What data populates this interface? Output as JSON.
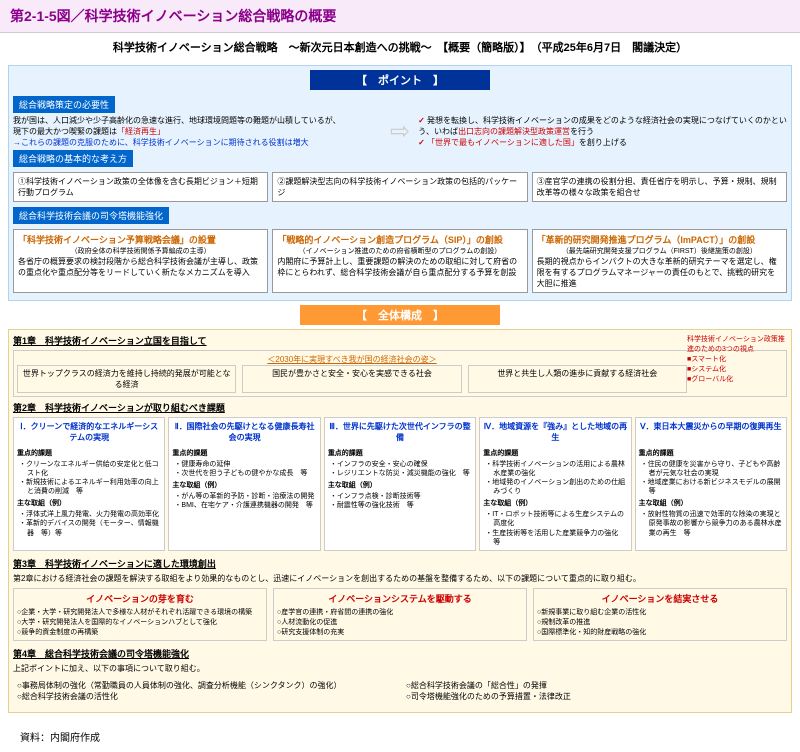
{
  "figureTitle": "第2-1-5図／科学技術イノベーション総合戦略の概要",
  "mainTitle": "科学技術イノベーション総合戦略　～新次元日本創造への挑戦～　【概要（簡略版）】　（平成25年6月7日　閣議決定）",
  "pointHeader": "【　ポイント　】",
  "banner1": "総合戦略策定の必要性",
  "leftText1": "我が国は、人口減少や少子高齢化の急速な進行、地球環境問題等の難題が山積しているが、",
  "leftText2": "現下の最大かつ喫緊の課題は",
  "leftHighlight": "「経済再生」",
  "leftText3": "→これらの課題の克服のために、科学技術イノベーションに期待される役割は増大",
  "rightText1": "発想を転換し、科学技術イノベーションの成果をどのような経済社会の実現につなげていくのかという、いわば",
  "rightHighlight1": "出口志向の課題解決型政策運営",
  "rightText2": "を行う",
  "rightText3": "「世界で最もイノベーションに適した国」",
  "rightText4": "を創り上げる",
  "banner2": "総合戦略の基本的な考え方",
  "box1": "①科学技術イノベーション政策の全体像を含む長期ビジョン＋短期行動プログラム",
  "box2": "②課題解決型志向の科学技術イノベーション政策の包括的パッケージ",
  "box3": "③産官学の連携の役割分担、責任省庁を明示し、予算・規制、規制改革等の様々な政策を組合せ",
  "banner3": "総合科学技術会議の司令塔機能強化",
  "prog1Title": "「科学技術イノベーション予算戦略会議」の設置",
  "prog1Sub": "（政府全体の科学技術関係予算編成の主導）",
  "prog1Text": "各省庁の概算要求の検討段階から総合科学技術会議が主導し、政策の重点化や重点配分等をリードしていく新たなメカニズムを導入",
  "prog2Title": "「戦略的イノベーション創造プログラム（SIP）」の創設",
  "prog2Sub": "（イノベーション推進のための府省横断型のプログラムの創設）",
  "prog2Text": "内閣府に予算計上し、重要課題の解決のための取組に対して府省の枠にとらわれず、総合科学技術会議が自ら重点配分する予算を創設",
  "prog3Title": "「革新的研究開発推進プログラム（ImPACT）」の創設",
  "prog3Sub": "（最先端研究開発支援プログラム（FIRST）後継施策の創設）",
  "prog3Text": "長期的視点からインパクトの大きな革新的研究テーマを選定し、権限を有するプログラムマネージャーの責任のもとで、挑戦的研究を大胆に推進",
  "overallHeader": "【　全体構成　】",
  "ch1": "第1章　科学技術イノベーション立国を目指して",
  "vision2030": "＜2030年に実現すべき我が国の経済社会の姿＞",
  "v1": "世界トップクラスの経済力を維持し持続的発展が可能となる経済",
  "v2": "国民が豊かさと安全・安心を実感できる社会",
  "v3": "世界と共生し人類の進歩に貢献する経済社会",
  "sideNote": "科学技術イノベーション政策推進のための3つの視点",
  "s1": "■スマート化",
  "s2": "■システム化",
  "s3": "■グローバル化",
  "ch2": "第2章　科学技術イノベーションが取り組むべき課題",
  "p1t": "Ⅰ．クリーンで経済的なエネルギーシステムの実現",
  "p2t": "Ⅱ．国際社会の先駆けとなる健康長寿社会の実現",
  "p3t": "Ⅲ．世界に先駆けた次世代インフラの整備",
  "p4t": "Ⅳ．地域資源を『強み』とした地域の再生",
  "p5t": "Ⅴ．東日本大震災からの早期の復興再生",
  "sub1": "重点的課題",
  "sub2": "主な取組（例）",
  "p1a": [
    "クリーンなエネルギー供給の安定化と低コスト化",
    "新規技術によるエネルギー利用効率の向上と消費の削減　等"
  ],
  "p1b": [
    "浮体式洋上風力発電、火力発電の高効率化",
    "革新的デバイスの開発（モーター、情報機器　等）等"
  ],
  "p2a": [
    "健康寿命の延伸",
    "次世代を担う子どもの健やかな成長　等"
  ],
  "p2b": [
    "がん等の革新的予防・診断・治療法の開発",
    "BMI、在宅ケア・介護連携機器の開発　等"
  ],
  "p3a": [
    "インフラの安全・安心の確保",
    "レジリエントな防災・減災機能の強化　等"
  ],
  "p3b": [
    "インフラ点検・診断技術等",
    "耐震性等の強化技術　等"
  ],
  "p4a": [
    "科学技術イノベーションの活用による農林水産業の強化",
    "地域発のイノベーション創出のための仕組みづくり"
  ],
  "p4b": [
    "IT・ロボット技術等による生産システムの高度化",
    "生産技術等を活用した産業競争力の強化　等"
  ],
  "p5a": [
    "住民の健康を災害から守り、子どもや高齢者が元気な社会の実現",
    "地域産業における新ビジネスモデルの展開　等"
  ],
  "p5b": [
    "放射性物質の迅速で効率的な除染の実現と原発事故の影響から競争力のある農林水産業の再生　等"
  ],
  "ch3": "第3章　科学技術イノベーションに適した環境創出",
  "ch3text": "第2章における経済社会の課題を解決する取組をより効果的なものとし、迅速にイノベーションを創出するための基盤を整備するため、以下の課題について重点的に取り組む。",
  "i1t": "イノベーションの芽を育む",
  "i1": [
    "○企業・大学・研究開発法人で多様な人材がそれぞれ活躍できる環境の構築",
    "○大学・研究開発法人を国際的なイノベーションハブとして強化",
    "○競争的資金制度の再構築"
  ],
  "i2t": "イノベーションシステムを駆動する",
  "i2": [
    "○産学官の連携・府省間の連携の強化",
    "○人材流動化の促進",
    "○研究支援体制の充実"
  ],
  "i3t": "イノベーションを結実させる",
  "i3": [
    "○新規事業に取り組む企業の活性化",
    "○規制改革の推進",
    "○国際標準化・知的財産戦略の強化"
  ],
  "ch4": "第4章　総合科学技術会議の司令塔機能強化",
  "ch4lead": "上記ポイントに加え、以下の事項について取り組む。",
  "ch4a": [
    "○事務局体制の強化（常勤職員の人員体制の強化、調査分析機能（シンクタンク）の強化）",
    "○総合科学技術会議の活性化"
  ],
  "ch4b": [
    "○総合科学技術会議の「総合性」の発揮",
    "○司令塔機能強化のための予算措置・法律改正"
  ],
  "source": "資料：内閣府作成"
}
